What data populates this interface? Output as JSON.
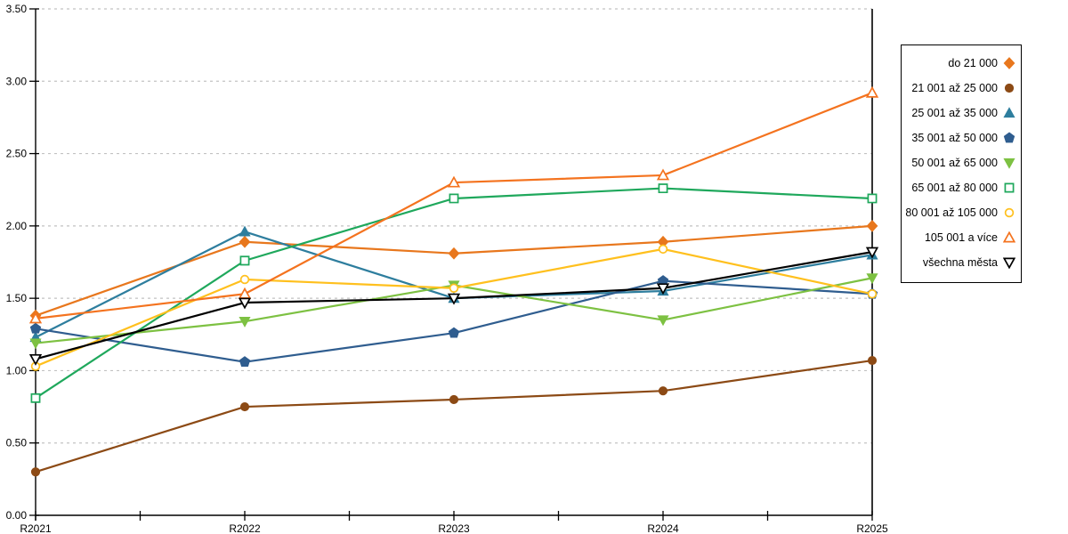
{
  "chart_data": {
    "type": "line",
    "title": "",
    "xlabel": "",
    "ylabel": "",
    "categories": [
      "R2021",
      "R2022",
      "R2023",
      "R2024",
      "R2025"
    ],
    "series": [
      {
        "name": "do 21 000",
        "color": "#E8771D",
        "marker": "diamond",
        "filled": true,
        "values": [
          1.38,
          1.89,
          1.81,
          1.89,
          2.0
        ]
      },
      {
        "name": "21 001 až 25 000",
        "color": "#8C4A15",
        "marker": "circle",
        "filled": true,
        "values": [
          0.3,
          0.75,
          0.8,
          0.86,
          1.07
        ]
      },
      {
        "name": "25 001 až 35 000",
        "color": "#2E7E9E",
        "marker": "triangle-up",
        "filled": true,
        "values": [
          1.23,
          1.96,
          1.5,
          1.55,
          1.8
        ]
      },
      {
        "name": "35 001 až 50 000",
        "color": "#2F5D8F",
        "marker": "pentagon",
        "filled": true,
        "values": [
          1.29,
          1.06,
          1.26,
          1.62,
          1.53
        ]
      },
      {
        "name": "50 001 až 65 000",
        "color": "#7DC142",
        "marker": "triangle-down",
        "filled": true,
        "values": [
          1.19,
          1.34,
          1.59,
          1.35,
          1.64
        ]
      },
      {
        "name": "65 001 až 80 000",
        "color": "#1FA85C",
        "marker": "square",
        "filled": false,
        "values": [
          0.81,
          1.76,
          2.19,
          2.26,
          2.19
        ]
      },
      {
        "name": "80 001 až 105 000",
        "color": "#FFC01E",
        "marker": "circle",
        "filled": false,
        "values": [
          1.03,
          1.63,
          1.57,
          1.84,
          1.53
        ]
      },
      {
        "name": "105 001 a více",
        "color": "#F4731F",
        "marker": "triangle-up",
        "filled": false,
        "values": [
          1.36,
          1.53,
          2.3,
          2.35,
          2.92
        ]
      },
      {
        "name": "všechna města",
        "color": "#000000",
        "marker": "triangle-down",
        "filled": false,
        "values": [
          1.08,
          1.47,
          1.5,
          1.57,
          1.82
        ]
      }
    ],
    "ylim": [
      0,
      3.5
    ],
    "ytick_step": 0.5,
    "ytick_labels": [
      "0.00",
      "0.50",
      "1.00",
      "1.50",
      "2.00",
      "2.50",
      "3.00",
      "3.50"
    ],
    "grid": "horizontal-dashed",
    "legend_position": "right",
    "colors": {
      "background": "#ffffff",
      "axis": "#000000",
      "gridline": "#c2c2c2",
      "tick_label": "#000000",
      "legend_border": "#000000"
    }
  }
}
